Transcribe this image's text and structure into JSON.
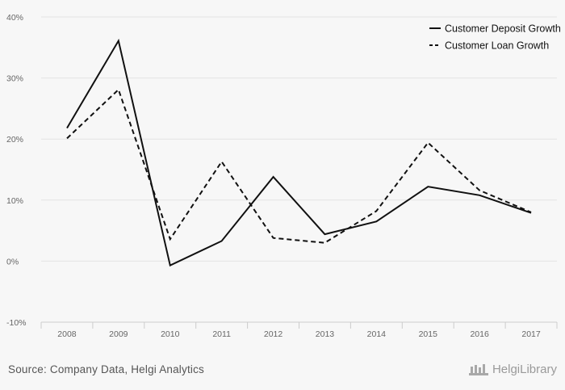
{
  "chart_data": {
    "type": "line",
    "categories": [
      "2008",
      "2009",
      "2010",
      "2011",
      "2012",
      "2013",
      "2014",
      "2015",
      "2016",
      "2017"
    ],
    "series": [
      {
        "name": "Customer Deposit Growth",
        "values": [
          21.8,
          36.1,
          -0.7,
          3.3,
          13.8,
          4.4,
          6.5,
          12.2,
          10.8,
          7.9
        ],
        "style": "solid"
      },
      {
        "name": "Customer Loan Growth",
        "values": [
          20.1,
          28.1,
          3.6,
          16.3,
          3.8,
          3.0,
          8.2,
          19.4,
          11.6,
          8.0
        ],
        "style": "dashed"
      }
    ],
    "y_ticks": [
      "-10%",
      "0%",
      "10%",
      "20%",
      "30%",
      "40%"
    ],
    "y_tick_values": [
      -10,
      0,
      10,
      20,
      30,
      40
    ],
    "ylim": [
      -10,
      40
    ],
    "grid": true,
    "legend": "top-right",
    "colors": {
      "series": "#111111",
      "grid": "#e3e3e3",
      "axis": "#cccccc",
      "tick_text": "#666666",
      "background": "#f7f7f7"
    }
  },
  "footer": {
    "source": "Source: Company Data, Helgi Analytics",
    "brand": "HelgiLibrary",
    "brand_icon": "library-logo-icon"
  }
}
